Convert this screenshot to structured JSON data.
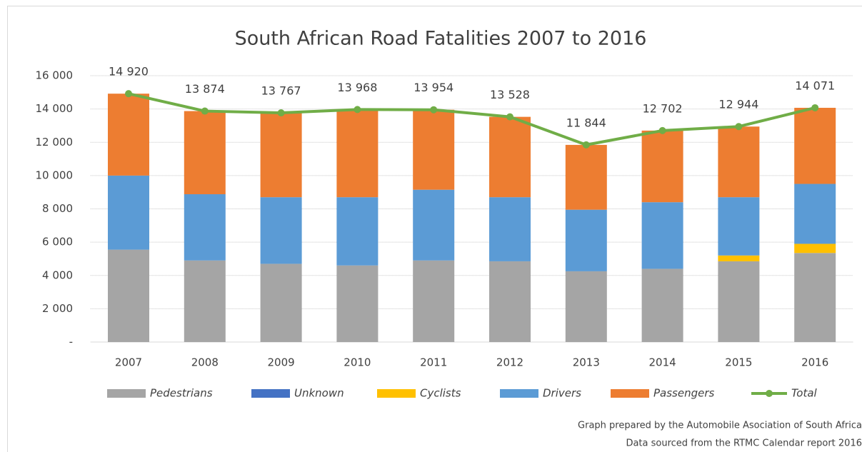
{
  "chart_data": {
    "type": "bar",
    "stacked": true,
    "title": "South African Road Fatalities 2007 to 2016",
    "categories": [
      "2007",
      "2008",
      "2009",
      "2010",
      "2011",
      "2012",
      "2013",
      "2014",
      "2015",
      "2016"
    ],
    "series": [
      {
        "name": "Pedestrians",
        "color": "#a5a5a5",
        "values": [
          5550,
          4900,
          4700,
          4600,
          4900,
          4850,
          4250,
          4400,
          4850,
          5350
        ]
      },
      {
        "name": "Unknown",
        "color": "#4472c4",
        "values": [
          0,
          0,
          0,
          0,
          0,
          0,
          0,
          0,
          0,
          0
        ]
      },
      {
        "name": "Cyclists",
        "color": "#ffc000",
        "values": [
          0,
          0,
          0,
          0,
          0,
          0,
          0,
          0,
          350,
          550
        ]
      },
      {
        "name": "Drivers",
        "color": "#5b9bd5",
        "values": [
          4450,
          3980,
          4000,
          4100,
          4250,
          3850,
          3700,
          4000,
          3500,
          3600
        ]
      },
      {
        "name": "Passengers",
        "color": "#ed7d31",
        "values": [
          4920,
          4994,
          5067,
          5268,
          4804,
          4828,
          3894,
          4302,
          4244,
          4571
        ]
      },
      {
        "name": "Total",
        "color": "#70ad47",
        "type": "line",
        "values": [
          14920,
          13874,
          13767,
          13968,
          13954,
          13528,
          11844,
          12702,
          12944,
          14071
        ],
        "value_labels": [
          "14 920",
          "13 874",
          "13 767",
          "13 968",
          "13 954",
          "13 528",
          "11 844",
          "12 702",
          "12 944",
          "14 071"
        ]
      }
    ],
    "ylim": [
      0,
      16000
    ],
    "yticks": [
      {
        "value": 0,
        "label": "-"
      },
      {
        "value": 2000,
        "label": "2 000"
      },
      {
        "value": 4000,
        "label": "4 000"
      },
      {
        "value": 6000,
        "label": "6 000"
      },
      {
        "value": 8000,
        "label": "8 000"
      },
      {
        "value": 10000,
        "label": "10 000"
      },
      {
        "value": 12000,
        "label": "12 000"
      },
      {
        "value": 14000,
        "label": "14 000"
      },
      {
        "value": 16000,
        "label": "16 000"
      }
    ],
    "grid": true,
    "legend": "bottom",
    "notes": [
      "Graph prepared by the Automobile Asociation of South Africa",
      "Data sourced from the RTMC Calendar report 2016"
    ]
  }
}
